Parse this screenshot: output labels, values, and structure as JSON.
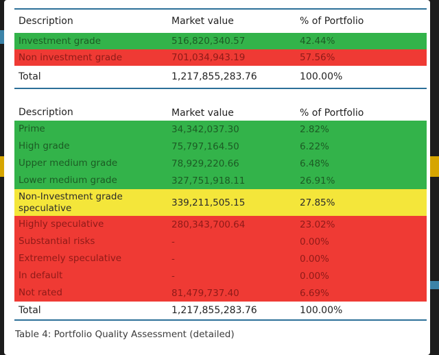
{
  "table1": {
    "headers": [
      "Description",
      "Market value",
      "% of Portfolio"
    ],
    "rows": [
      {
        "description": "Investment grade",
        "market_value": "516,820,340.57",
        "percent": "42.44%",
        "color": "#33b34a"
      },
      {
        "description": "Non investment grade",
        "market_value": "701,034,943.19",
        "percent": "57.56%",
        "color": "#ef3a34"
      }
    ],
    "total": {
      "description": "Total",
      "market_value": "1,217,855,283.76",
      "percent": "100.00%"
    }
  },
  "table2": {
    "headers": [
      "Description",
      "Market value",
      "% of Portfolio"
    ],
    "rows": [
      {
        "description": "Prime",
        "market_value": "34,342,037.30",
        "percent": "2.82%",
        "color": "#33b34a"
      },
      {
        "description": "High grade",
        "market_value": "75,797,164.50",
        "percent": "6.22%",
        "color": "#33b34a"
      },
      {
        "description": "Upper medium grade",
        "market_value": "78,929,220.66",
        "percent": "6.48%",
        "color": "#33b34a"
      },
      {
        "description": "Lower medium grade",
        "market_value": "327,751,918.11",
        "percent": "26.91%",
        "color": "#33b34a"
      },
      {
        "description": "Non-Investment grade speculative",
        "market_value": "339,211,505.15",
        "percent": "27.85%",
        "color": "#f4e63a"
      },
      {
        "description": "Highly speculative",
        "market_value": "280,343,700.64",
        "percent": "23.02%",
        "color": "#ef3a34"
      },
      {
        "description": "Substantial risks",
        "market_value": "-",
        "percent": "0.00%",
        "color": "#ef3a34"
      },
      {
        "description": "Extremely speculative",
        "market_value": "-",
        "percent": "0.00%",
        "color": "#ef3a34"
      },
      {
        "description": "In default",
        "market_value": "-",
        "percent": "0.00%",
        "color": "#ef3a34"
      },
      {
        "description": "Not rated",
        "market_value": "81,479,737.40",
        "percent": "6.69%",
        "color": "#ef3a34"
      }
    ],
    "total": {
      "description": "Total",
      "market_value": "1,217,855,283.76",
      "percent": "100.00%"
    }
  },
  "caption": "Table 4: Portfolio Quality Assessment (detailed)"
}
